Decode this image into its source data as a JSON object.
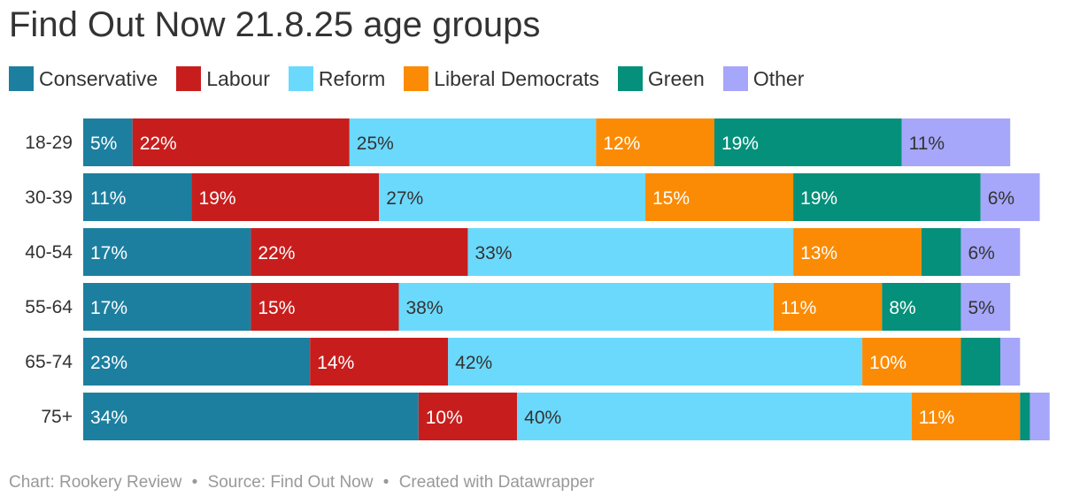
{
  "title": "Find Out Now 21.8.25 age groups",
  "legend": [
    {
      "label": "Conservative",
      "color": "#1d7fa0"
    },
    {
      "label": "Labour",
      "color": "#c71e1d"
    },
    {
      "label": "Reform",
      "color": "#6bd9fc"
    },
    {
      "label": "Liberal Democrats",
      "color": "#fb8b04"
    },
    {
      "label": "Green",
      "color": "#04907a"
    },
    {
      "label": "Other",
      "color": "#a6a6fa"
    }
  ],
  "chart_data": {
    "type": "bar",
    "orientation": "horizontal",
    "stacked": true,
    "title": "Find Out Now 21.8.25 age groups",
    "categories": [
      "18-29",
      "30-39",
      "40-54",
      "55-64",
      "65-74",
      "75+"
    ],
    "value_suffix": "%",
    "xlim": [
      0,
      100
    ],
    "series": [
      {
        "name": "Conservative",
        "color": "#1d7fa0",
        "label_color": "#ffffff",
        "values": [
          5,
          11,
          17,
          17,
          23,
          34
        ],
        "labels": [
          "5%",
          "11%",
          "17%",
          "17%",
          "23%",
          "34%"
        ]
      },
      {
        "name": "Labour",
        "color": "#c71e1d",
        "label_color": "#ffffff",
        "values": [
          22,
          19,
          22,
          15,
          14,
          10
        ],
        "labels": [
          "22%",
          "19%",
          "22%",
          "15%",
          "14%",
          "10%"
        ]
      },
      {
        "name": "Reform",
        "color": "#6bd9fc",
        "label_color": "#333333",
        "values": [
          25,
          27,
          33,
          38,
          42,
          40
        ],
        "labels": [
          "25%",
          "27%",
          "33%",
          "38%",
          "42%",
          "40%"
        ]
      },
      {
        "name": "Liberal Democrats",
        "color": "#fb8b04",
        "label_color": "#ffffff",
        "values": [
          12,
          15,
          13,
          11,
          10,
          11
        ],
        "labels": [
          "12%",
          "15%",
          "13%",
          "11%",
          "10%",
          "11%"
        ]
      },
      {
        "name": "Green",
        "color": "#04907a",
        "label_color": "#ffffff",
        "values": [
          19,
          19,
          4,
          8,
          4,
          1
        ],
        "labels": [
          "19%",
          "19%",
          "",
          "8%",
          "",
          ""
        ]
      },
      {
        "name": "Other",
        "color": "#a6a6fa",
        "label_color": "#333333",
        "values": [
          11,
          6,
          6,
          5,
          2,
          2
        ],
        "labels": [
          "11%",
          "6%",
          "6%",
          "5%",
          "",
          ""
        ]
      }
    ]
  },
  "footer": {
    "chart_credit": "Chart: Rookery Review",
    "source": "Source: Find Out Now",
    "created": "Created with Datawrapper",
    "separator": "•"
  }
}
